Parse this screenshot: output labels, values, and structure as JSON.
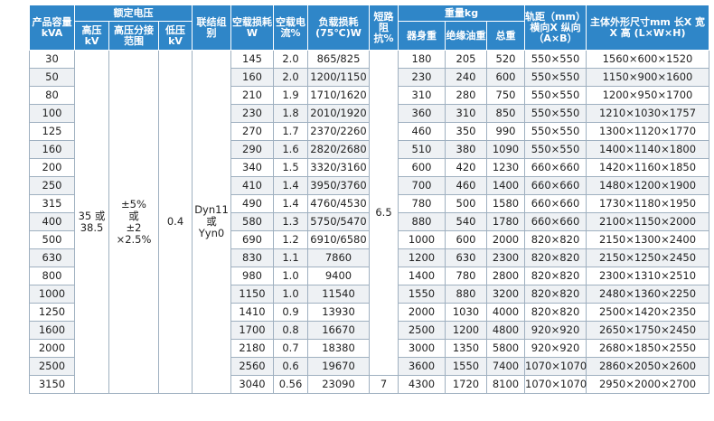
{
  "header": {
    "capacity": "产品容量kVA",
    "rated_voltage": "额定电压",
    "high_voltage": "高压kV",
    "tap_range": "高压分接范围",
    "low_voltage": "低压kV",
    "connection": "联结组别",
    "noload_loss": "空载损耗W",
    "noload_current": "空载电流%",
    "load_loss": "负载损耗(75℃)W",
    "impedance": "短路阻抗%",
    "weight": "重量kg",
    "body_weight": "器身重",
    "oil_weight": "绝缘油重",
    "total_weight": "总重",
    "track": "轨距（mm）横向X 纵向（A×B）",
    "dimensions": "主体外形尺寸mm 长X 宽X 高 (L×W×H)"
  },
  "table": {
    "high_voltage": [
      "35 或",
      "38.5"
    ],
    "tap_range": [
      "±5%",
      "或",
      "±2",
      "×2.5%"
    ],
    "low_voltage": "0.4",
    "connection": [
      "Dyn11",
      "或",
      "Yyn0"
    ],
    "impedance": [
      "6.5",
      "7"
    ],
    "rows": [
      [
        "30",
        "145",
        "2.0",
        "865/825",
        "180",
        "205",
        "520",
        "550×550",
        "1560×600×1520"
      ],
      [
        "50",
        "160",
        "2.0",
        "1200/1150",
        "230",
        "240",
        "600",
        "550×550",
        "1150×900×1600"
      ],
      [
        "80",
        "210",
        "1.9",
        "1710/1620",
        "310",
        "280",
        "750",
        "550×550",
        "1200×950×1700"
      ],
      [
        "100",
        "230",
        "1.8",
        "2010/1920",
        "360",
        "310",
        "850",
        "550×550",
        "1210×1030×1757"
      ],
      [
        "125",
        "270",
        "1.7",
        "2370/2260",
        "460",
        "350",
        "990",
        "550×550",
        "1300×1120×1770"
      ],
      [
        "160",
        "290",
        "1.6",
        "2820/2680",
        "510",
        "380",
        "1090",
        "550×550",
        "1400×1140×1800"
      ],
      [
        "200",
        "340",
        "1.5",
        "3320/3160",
        "600",
        "420",
        "1230",
        "660×660",
        "1420×1160×1850"
      ],
      [
        "250",
        "410",
        "1.4",
        "3950/3760",
        "700",
        "460",
        "1400",
        "660×660",
        "1480×1200×1900"
      ],
      [
        "315",
        "490",
        "1.4",
        "4760/4530",
        "780",
        "500",
        "1580",
        "660×660",
        "1730×1180×1950"
      ],
      [
        "400",
        "580",
        "1.3",
        "5750/5470",
        "880",
        "540",
        "1780",
        "660×660",
        "2100×1150×2000"
      ],
      [
        "500",
        "690",
        "1.2",
        "6910/6580",
        "1000",
        "600",
        "2000",
        "820×820",
        "2150×1300×2400"
      ],
      [
        "630",
        "830",
        "1.1",
        "7860",
        "1200",
        "630",
        "2300",
        "820×820",
        "2150×1250×2450"
      ],
      [
        "800",
        "980",
        "1.0",
        "9400",
        "1400",
        "780",
        "2800",
        "820×820",
        "2300×1310×2510"
      ],
      [
        "1000",
        "1150",
        "1.0",
        "11540",
        "1550",
        "880",
        "3200",
        "820×820",
        "2480×1360×2250"
      ],
      [
        "1250",
        "1410",
        "0.9",
        "13930",
        "2000",
        "1030",
        "4000",
        "820×820",
        "2500×1420×2350"
      ],
      [
        "1600",
        "1700",
        "0.8",
        "16670",
        "2500",
        "1200",
        "4800",
        "920×920",
        "2650×1750×2450"
      ],
      [
        "2000",
        "2180",
        "0.7",
        "18380",
        "3000",
        "1350",
        "5800",
        "920×920",
        "2680×1850×2550"
      ],
      [
        "2500",
        "2560",
        "0.6",
        "19670",
        "3600",
        "1550",
        "7400",
        "1070×1070",
        "2860×2050×2600"
      ],
      [
        "3150",
        "3040",
        "0.56",
        "23090",
        "4300",
        "1720",
        "8100",
        "1070×1070",
        "2950×2000×2700"
      ]
    ]
  }
}
